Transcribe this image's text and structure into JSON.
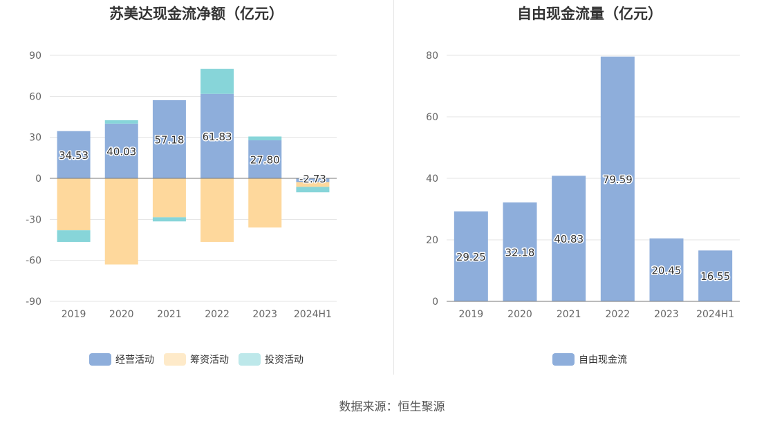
{
  "source": "数据来源：恒生聚源",
  "chart_data": [
    {
      "type": "bar",
      "stacked": true,
      "title": "苏美达现金流净额（亿元）",
      "categories": [
        "2019",
        "2020",
        "2021",
        "2022",
        "2023",
        "2024H1"
      ],
      "ylim": [
        -90,
        90
      ],
      "yticks": [
        90,
        60,
        30,
        0,
        -30,
        -60,
        -90
      ],
      "grid": true,
      "legend_position": "bottom",
      "series": [
        {
          "name": "经营活动",
          "color": "#8eaedb",
          "values": [
            34.53,
            40.03,
            57.18,
            61.83,
            27.8,
            -2.73
          ],
          "labels": [
            "34.53",
            "40.03",
            "57.18",
            "61.83",
            "27.80",
            "-2.73"
          ]
        },
        {
          "name": "筹资活动",
          "color": "#fed89c",
          "values": [
            -38.0,
            -63.0,
            -28.5,
            -46.5,
            -36.0,
            -3.5
          ]
        },
        {
          "name": "投资活动",
          "color": "#87d5d9",
          "values": [
            -8.5,
            2.5,
            -3.0,
            18.2,
            2.8,
            -4.0
          ]
        }
      ]
    },
    {
      "type": "bar",
      "title": "自由现金流量（亿元）",
      "categories": [
        "2019",
        "2020",
        "2021",
        "2022",
        "2023",
        "2024H1"
      ],
      "ylim": [
        0,
        80
      ],
      "yticks": [
        80,
        60,
        40,
        20,
        0
      ],
      "grid": true,
      "legend_position": "bottom",
      "series": [
        {
          "name": "自由现金流",
          "color": "#8eaedb",
          "values": [
            29.25,
            32.18,
            40.83,
            79.59,
            20.45,
            16.55
          ],
          "labels": [
            "29.25",
            "32.18",
            "40.83",
            "79.59",
            "20.45",
            "16.55"
          ]
        }
      ]
    }
  ]
}
